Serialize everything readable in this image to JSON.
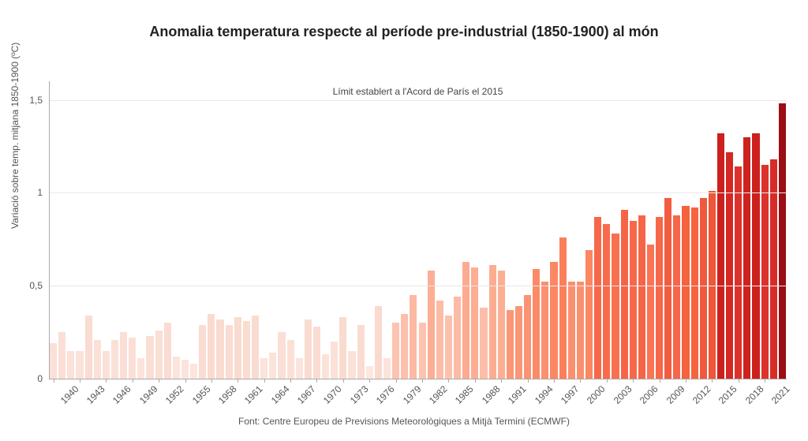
{
  "chart": {
    "type": "bar",
    "title": "Anomalia temperatura respecte al període pre-industrial (1850-1900) al món",
    "title_fontsize": 18,
    "yaxis_label": "Variació sobre temp. mitjana 1850-1900 (ºC)",
    "yaxis_fontsize": 12,
    "source": "Font: Centre Europeu de Previsions Meteorològiques a Mitjà Termini (ECMWF)",
    "source_fontsize": 12,
    "reference_line": {
      "value": 1.5,
      "label": "Límit establert a l'Acord de París el 2015",
      "label_fontsize": 12,
      "color": "#333333",
      "dash": "4,3"
    },
    "background_color": "#ffffff",
    "grid_color": "#e8e8e8",
    "axis_color": "#aaaaaa",
    "tick_fontsize": 12,
    "ylim": [
      0,
      1.6
    ],
    "yticks": [
      0,
      0.5,
      1,
      1.5
    ],
    "ytick_labels": [
      "0",
      "0,5",
      "1",
      "1,5"
    ],
    "xstart": 1940,
    "xend": 2023,
    "xtick_step": 3,
    "bar_width": 0.82,
    "years": [
      1940,
      1941,
      1942,
      1943,
      1944,
      1945,
      1946,
      1947,
      1948,
      1949,
      1950,
      1951,
      1952,
      1953,
      1954,
      1955,
      1956,
      1957,
      1958,
      1959,
      1960,
      1961,
      1962,
      1963,
      1964,
      1965,
      1966,
      1967,
      1968,
      1969,
      1970,
      1971,
      1972,
      1973,
      1974,
      1975,
      1976,
      1977,
      1978,
      1979,
      1980,
      1981,
      1982,
      1983,
      1984,
      1985,
      1986,
      1987,
      1988,
      1989,
      1990,
      1991,
      1992,
      1993,
      1994,
      1995,
      1996,
      1997,
      1998,
      1999,
      2000,
      2001,
      2002,
      2003,
      2004,
      2005,
      2006,
      2007,
      2008,
      2009,
      2010,
      2011,
      2012,
      2013,
      2014,
      2015,
      2016,
      2017,
      2018,
      2019,
      2020,
      2021,
      2022,
      2023
    ],
    "values": [
      0.19,
      0.25,
      0.15,
      0.15,
      0.34,
      0.21,
      0.15,
      0.21,
      0.25,
      0.22,
      0.11,
      0.23,
      0.26,
      0.3,
      0.12,
      0.1,
      0.08,
      0.29,
      0.35,
      0.32,
      0.29,
      0.33,
      0.31,
      0.34,
      0.11,
      0.14,
      0.25,
      0.21,
      0.11,
      0.32,
      0.28,
      0.13,
      0.2,
      0.33,
      0.15,
      0.29,
      0.07,
      0.39,
      0.11,
      0.3,
      0.35,
      0.45,
      0.3,
      0.58,
      0.42,
      0.34,
      0.44,
      0.63,
      0.6,
      0.38,
      0.61,
      0.58,
      0.37,
      0.39,
      0.45,
      0.59,
      0.52,
      0.63,
      0.76,
      0.52,
      0.52,
      0.69,
      0.87,
      0.83,
      0.78,
      0.91,
      0.85,
      0.88,
      0.72,
      0.87,
      0.97,
      0.88,
      0.93,
      0.92,
      0.97,
      1.01,
      1.32,
      1.22,
      1.14,
      1.3,
      1.32,
      1.15,
      1.18,
      1.48
    ],
    "bar_colors": [
      "#fbe0d7",
      "#fbdfd6",
      "#fbe1d8",
      "#fbe1d8",
      "#fadcd2",
      "#fbe0d7",
      "#fbe1d8",
      "#fbe0d7",
      "#fbdfd6",
      "#fbdfd6",
      "#fce3db",
      "#fadfd6",
      "#fadfd4",
      "#fadcd2",
      "#fce3db",
      "#fce4dc",
      "#fde5dd",
      "#fadcd2",
      "#fadbd0",
      "#fadbd0",
      "#fadcd2",
      "#fadbd0",
      "#fadcd1",
      "#fadbd0",
      "#fce3db",
      "#fbe3da",
      "#fadfd6",
      "#fbe0d7",
      "#fce3db",
      "#fadbd0",
      "#fadcd2",
      "#fce3da",
      "#fbe1d8",
      "#fadbd0",
      "#fbe2d9",
      "#fadcd2",
      "#fde7df",
      "#fad9ce",
      "#fce3db",
      "#fcc3b0",
      "#fcc0ac",
      "#fcbaa3",
      "#fcc3b0",
      "#fcae94",
      "#fcbca6",
      "#fcc1ad",
      "#fcbba4",
      "#fcab90",
      "#fcad92",
      "#fcbea9",
      "#fcac91",
      "#fcae93",
      "#fb9777",
      "#fb9676",
      "#fb9372",
      "#fb8b68",
      "#fb9070",
      "#fb8864",
      "#fb7f5a",
      "#fb9070",
      "#fb9070",
      "#fb8763",
      "#f76749",
      "#f76b4c",
      "#f87050",
      "#f66447",
      "#f7674a",
      "#f66548",
      "#fa7455",
      "#f76749",
      "#f25c40",
      "#f6664a",
      "#f5633e",
      "#f5633f",
      "#ef593d",
      "#ee5739",
      "#cc201e",
      "#d52723",
      "#dc322b",
      "#ce221f",
      "#cc201e",
      "#db322b",
      "#d82c26",
      "#9c0d14"
    ]
  }
}
